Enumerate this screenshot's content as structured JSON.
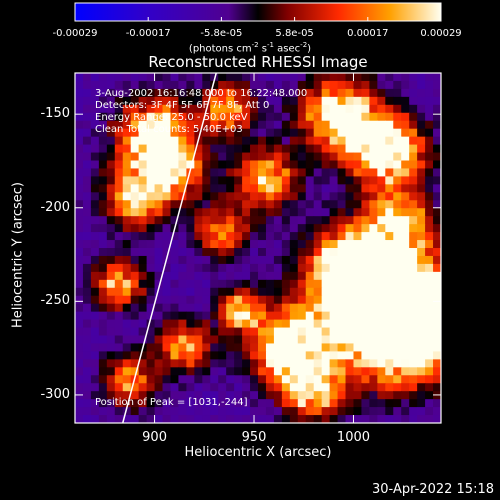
{
  "colorbar": {
    "ticks": [
      "-0.00029",
      "-0.00017",
      "-5.8e-05",
      "5.8e-05",
      "0.00017",
      "0.00029"
    ],
    "units_main": "(photons cm",
    "units_sup1": "-2",
    "units_mid1": " s",
    "units_sup2": "-1",
    "units_mid2": " asec",
    "units_sup3": "-2",
    "units_end": ")"
  },
  "chart_data": {
    "type": "heatmap",
    "title": "Reconstructed RHESSI Image",
    "xlabel": "Heliocentric X (arcsec)",
    "ylabel": "Heliocentric Y (arcsec)",
    "xlim": [
      860,
      1044
    ],
    "ylim": [
      -315,
      -128
    ],
    "xticks": [
      "900",
      "950",
      "1000"
    ],
    "yticks": [
      "-150",
      "-200",
      "-250",
      "-300"
    ],
    "xtick_values": [
      900,
      950,
      1000
    ],
    "ytick_values": [
      -150,
      -200,
      -250,
      -300
    ],
    "colorbar_range": [
      -0.00029,
      0.00029
    ],
    "peak_position": [
      1031,
      -244
    ],
    "annotations": [
      "3-Aug-2002 16:16:48.000 to 16:22:48.000",
      "Detectors: 3F 4F 5F 6F 7F 8F, Att 0",
      "Energy Range: 25.0 - 50.0 keV",
      "Clean     Total counts: 5.40E+03"
    ],
    "peak_text": "Position of Peak = [1031,-244]",
    "limb_line": [
      [
        884,
        -315
      ],
      [
        931,
        -128
      ]
    ]
  },
  "footer": {
    "timestamp": "30-Apr-2022 15:18"
  },
  "colors": {
    "background": "#000000",
    "axis": "#ffffff"
  }
}
